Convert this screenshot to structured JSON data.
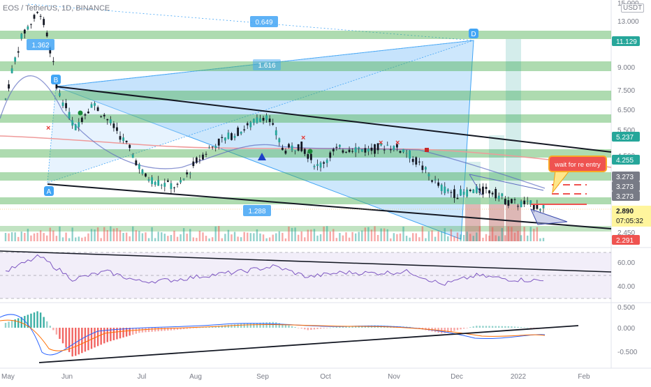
{
  "header": {
    "title": "EOS / TetherUS, 1D, BINANCE",
    "currency": "USDT"
  },
  "price_axis": {
    "ticks": [
      "15.000",
      "13.000",
      "11.000",
      "9.000",
      "7.500",
      "6.500",
      "5.500",
      "4.500",
      "3.500",
      "2.450"
    ]
  },
  "price_badges": [
    {
      "label": "11.129",
      "color": "#26a69a"
    },
    {
      "label": "5.237",
      "color": "#26a69a"
    },
    {
      "label": "4.255",
      "color": "#26a69a"
    },
    {
      "label": "3.273",
      "color": "#787b86"
    },
    {
      "label": "3.273",
      "color": "#787b86"
    },
    {
      "label": "3.273",
      "color": "#787b86"
    },
    {
      "label": "2.291",
      "color": "#ef5350"
    }
  ],
  "last_price": {
    "price": "2.890",
    "countdown": "07:05:32"
  },
  "fib_labels": [
    "0.649",
    "1.362",
    "1.616",
    "1.288"
  ],
  "pattern_points": [
    "A",
    "B",
    "D"
  ],
  "annotation": "wait for re entry",
  "rsi_axis": {
    "ticks": [
      "60.00",
      "40.00"
    ]
  },
  "macd_axis": {
    "ticks": [
      "0.500",
      "0.000",
      "-0.500"
    ]
  },
  "time_axis": {
    "labels": [
      "May",
      "Jun",
      "Jul",
      "Aug",
      "Sep",
      "Oct",
      "Nov",
      "Dec",
      "2022",
      "Feb"
    ]
  },
  "colors": {
    "up": "#26a69a",
    "down": "#ef5350",
    "zone": "#4caf50",
    "fib": "#42a5f5",
    "rsi": "#7e57c2"
  },
  "chart_data": [
    {
      "type": "line",
      "title": "EOS / TetherUS, 1D, BINANCE",
      "ylabel": "USDT",
      "y_scale": "log",
      "ylim": [
        2.2,
        15.5
      ],
      "x": [
        "May 1",
        "May 10",
        "May 15",
        "May 20",
        "May 25",
        "Jun 1",
        "Jun 10",
        "Jun 20",
        "Jul 1",
        "Jul 10",
        "Jul 20",
        "Aug 1",
        "Aug 10",
        "Aug 20",
        "Sep 1",
        "Sep 8",
        "Sep 15",
        "Sep 25",
        "Oct 1",
        "Oct 10",
        "Oct 20",
        "Nov 1",
        "Nov 10",
        "Nov 20",
        "Dec 1",
        "Dec 5",
        "Dec 10",
        "Dec 20",
        "Jan 1",
        "Jan 5",
        "Jan 10",
        "Jan 15"
      ],
      "series": [
        {
          "values": [
            7.0,
            12.0,
            14.5,
            7.5,
            5.5,
            6.8,
            5.8,
            4.8,
            3.7,
            3.5,
            3.4,
            4.2,
            4.8,
            5.2,
            5.6,
            6.2,
            4.6,
            4.8,
            4.0,
            4.6,
            4.7,
            4.6,
            4.8,
            4.6,
            4.0,
            3.4,
            3.2,
            3.3,
            3.3,
            3.0,
            2.95,
            2.89
          ]
        }
      ],
      "horizontal_zones": [
        11.129,
        9.0,
        7.2,
        6.1,
        4.5,
        3.9,
        3.273
      ],
      "price_lines": [
        11.129,
        5.237,
        4.255,
        3.273,
        2.291
      ]
    },
    {
      "type": "line",
      "title": "",
      "ylim": [
        20,
        80
      ],
      "x": [
        "May 1",
        "May 10",
        "May 20",
        "Jun 1",
        "Jun 20",
        "Jul 10",
        "Aug 1",
        "Aug 20",
        "Sep 8",
        "Sep 25",
        "Oct 10",
        "Nov 1",
        "Nov 20",
        "Dec 5",
        "Dec 20",
        "Jan 5",
        "Jan 15"
      ],
      "series": [
        {
          "values": [
            55,
            75,
            45,
            55,
            42,
            44,
            50,
            55,
            62,
            48,
            54,
            53,
            55,
            38,
            50,
            45,
            43
          ]
        }
      ]
    },
    {
      "type": "bar",
      "title": "",
      "ylim": [
        -0.75,
        0.6
      ],
      "x": [
        "May 1",
        "May 10",
        "May 20",
        "Jun 1",
        "Jun 20",
        "Jul 10",
        "Aug 1",
        "Aug 20",
        "Sep 8",
        "Sep 25",
        "Oct 10",
        "Nov 1",
        "Nov 20",
        "Dec 5",
        "Dec 20",
        "Jan 5",
        "Jan 15"
      ],
      "values": [
        0.1,
        0.35,
        -0.6,
        -0.3,
        -0.1,
        -0.05,
        0.02,
        0.08,
        0.12,
        -0.05,
        0.03,
        0.05,
        0.02,
        -0.12,
        0.04,
        0.03,
        -0.02
      ]
    }
  ]
}
